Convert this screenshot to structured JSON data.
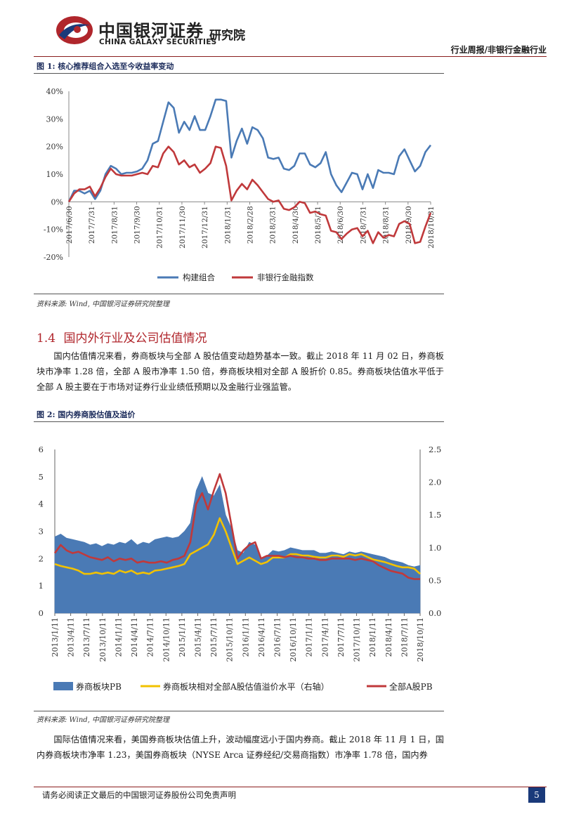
{
  "header": {
    "brand_cn": "中国银河证券",
    "brand_en": "CHINA GALAXY SECURITIES",
    "institute": "研究院",
    "report_type": "行业周报/非银行金融行业",
    "colors": {
      "brand_red": "#b0262c",
      "brand_blue": "#1a3a7a"
    }
  },
  "figure1": {
    "title": "图 1: 核心推荐组合入选至今收益率变动",
    "source": "资料来源: Wind, 中国银河证券研究院整理",
    "chart_data": {
      "type": "line",
      "x_tick_labels": [
        "2017/6/30",
        "2017/7/31",
        "2017/8/31",
        "2017/9/30",
        "2017/10/31",
        "2017/11/30",
        "2017/12/31",
        "2018/1/31",
        "2018/2/28",
        "2018/3/31",
        "2018/4/30",
        "2018/5/31",
        "2018/6/30",
        "2018/7/31",
        "2018/8/31",
        "2018/9/30",
        "2018/10/31"
      ],
      "y_tick_labels": [
        "40%",
        "30%",
        "20%",
        "10%",
        "0%",
        "-10%",
        "-20%"
      ],
      "ylim": [
        -20,
        40
      ],
      "legend_position": "bottom",
      "series": [
        {
          "name": "构建组合",
          "color": "#4a7ab5",
          "values": [
            0,
            4,
            4,
            3,
            4,
            1,
            4,
            10,
            13,
            12,
            10,
            10.5,
            10.5,
            11,
            12,
            15,
            21,
            22,
            29,
            36,
            34,
            25,
            29,
            26,
            31,
            26,
            26,
            31,
            37,
            37,
            36.5,
            16,
            22,
            26.5,
            21,
            27,
            26,
            23,
            16,
            15.5,
            16,
            12,
            11.5,
            13,
            17.5,
            17.5,
            13.5,
            12.5,
            14,
            18,
            10,
            6,
            3.5,
            7,
            10.5,
            10,
            4.5,
            10,
            5,
            11.5,
            10.5,
            10.5,
            10,
            16.5,
            19,
            15,
            11,
            13,
            18,
            20.5
          ]
        },
        {
          "name": "非银行金融指数",
          "color": "#c0393b",
          "values": [
            0,
            3,
            4.5,
            4.5,
            5.5,
            2,
            5,
            9,
            12,
            10,
            9.5,
            9.5,
            9.5,
            10,
            10.5,
            10,
            13,
            12.5,
            17.5,
            20,
            18,
            13.5,
            15,
            12.5,
            13.5,
            10.5,
            12,
            14,
            20,
            19.5,
            13,
            0.5,
            4,
            6.5,
            4.5,
            8,
            6,
            3.5,
            1,
            0,
            0.5,
            -2.5,
            -3,
            -2,
            0,
            -0.5,
            -4,
            -3.5,
            -4.5,
            -5,
            -10.5,
            -11,
            -13.5,
            -11.5,
            -10,
            -9.5,
            -12.5,
            -10.5,
            -15,
            -11,
            -13,
            -12,
            -12.5,
            -8,
            -7,
            -8,
            -15,
            -14.5,
            -9,
            -4
          ]
        }
      ]
    }
  },
  "section": {
    "number": "1.4",
    "title": "国内外行业及公司估值情况",
    "paragraph1": "国内估值情况来看，券商板块与全部 A 股估值变动趋势基本一致。截止 2018 年 11 月 02 日，券商板块市净率 1.28 倍，全部 A 股市净率 1.50 倍，券商板块相对全部 A 股折价 0.85。券商板块估值水平低于全部 A 股主要在于市场对证券行业业绩低预期以及金融行业强监管。"
  },
  "figure2": {
    "title": "图 2: 国内券商股估值及溢价",
    "source": "资料来源: Wind, 中国银河证券研究院整理",
    "chart_data": {
      "type": "area",
      "x_tick_labels": [
        "2013/1/11",
        "2013/4/11",
        "2013/7/11",
        "2013/10/11",
        "2014/1/11",
        "2014/4/11",
        "2014/7/11",
        "2014/10/11",
        "2015/1/11",
        "2015/4/11",
        "2015/7/11",
        "2015/10/11",
        "2016/1/11",
        "2016/4/11",
        "2016/7/11",
        "2016/10/11",
        "2017/1/11",
        "2017/4/11",
        "2017/7/11",
        "2017/10/11",
        "2018/1/11",
        "2018/4/11",
        "2018/7/11",
        "2018/10/11"
      ],
      "left_y_tick_labels": [
        "6",
        "5",
        "4",
        "3",
        "2",
        "1",
        "0"
      ],
      "right_y_tick_labels": [
        "2.5",
        "2.0",
        "1.5",
        "1.0",
        "0.5",
        "0.0"
      ],
      "ylim_left": [
        0,
        6
      ],
      "ylim_right": [
        0,
        2.5
      ],
      "legend_position": "bottom",
      "series": [
        {
          "name": "券商板块PB",
          "axis": "left",
          "kind": "area",
          "color": "#4a7ab5",
          "values": [
            2.8,
            2.9,
            2.75,
            2.7,
            2.65,
            2.6,
            2.5,
            2.55,
            2.45,
            2.55,
            2.5,
            2.6,
            2.55,
            2.7,
            2.5,
            2.6,
            2.55,
            2.7,
            2.75,
            2.8,
            2.75,
            2.8,
            3.0,
            3.3,
            4.5,
            5.0,
            4.4,
            4.3,
            4.7,
            3.6,
            3.1,
            2.3,
            2.2,
            2.6,
            2.5,
            2.0,
            2.1,
            2.3,
            2.25,
            2.3,
            2.4,
            2.35,
            2.3,
            2.3,
            2.3,
            2.2,
            2.2,
            2.25,
            2.2,
            2.15,
            2.25,
            2.2,
            2.25,
            2.2,
            2.15,
            2.1,
            2.05,
            1.95,
            1.9,
            1.85,
            1.75,
            1.7,
            1.75
          ]
        },
        {
          "name": "券商板块相对全部A股估值溢价水平（右轴）",
          "axis": "right",
          "kind": "line",
          "color": "#f2c200",
          "values": [
            0.75,
            0.72,
            0.7,
            0.68,
            0.65,
            0.6,
            0.6,
            0.62,
            0.6,
            0.62,
            0.6,
            0.65,
            0.62,
            0.65,
            0.6,
            0.62,
            0.6,
            0.65,
            0.66,
            0.68,
            0.7,
            0.72,
            0.75,
            0.9,
            0.95,
            1.0,
            1.05,
            1.2,
            1.45,
            1.25,
            1.0,
            0.75,
            0.8,
            0.85,
            0.8,
            0.75,
            0.78,
            0.85,
            0.85,
            0.85,
            0.9,
            0.9,
            0.88,
            0.88,
            0.86,
            0.85,
            0.85,
            0.88,
            0.88,
            0.86,
            0.9,
            0.88,
            0.9,
            0.86,
            0.82,
            0.8,
            0.78,
            0.75,
            0.72,
            0.7,
            0.7,
            0.68,
            0.6
          ]
        },
        {
          "name": "全部A股PB",
          "axis": "left",
          "kind": "line",
          "color": "#c0393b",
          "values": [
            2.2,
            2.5,
            2.3,
            2.2,
            2.25,
            2.15,
            2.05,
            2.0,
            1.95,
            2.05,
            1.9,
            2.0,
            1.95,
            2.0,
            1.85,
            1.9,
            1.85,
            1.85,
            1.9,
            1.85,
            1.95,
            2.0,
            2.1,
            2.6,
            4.0,
            4.4,
            3.8,
            4.5,
            5.1,
            4.4,
            3.2,
            2.0,
            2.3,
            2.5,
            2.6,
            2.0,
            2.1,
            2.1,
            2.1,
            2.05,
            2.1,
            2.05,
            2.05,
            2.0,
            2.0,
            1.95,
            1.95,
            2.0,
            2.0,
            2.0,
            2.0,
            1.95,
            2.0,
            1.95,
            1.9,
            1.75,
            1.65,
            1.55,
            1.5,
            1.45,
            1.3,
            1.25,
            1.25
          ]
        }
      ]
    }
  },
  "paragraph2": "国际估值情况来看，美国券商板块估值上升，波动幅度远小于国内券商。截止 2018 年 11 月 1 日，国内券商板块市净率 1.23，美国券商板块（NYSE Arca 证券经纪/交易商指数）市净率 1.78 倍，国内券",
  "footer": {
    "disclaimer": "请务必阅读正文最后的中国银河证券股份公司免责声明",
    "page_number": "5"
  }
}
